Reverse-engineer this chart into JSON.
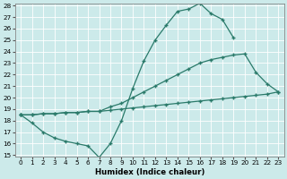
{
  "line1_x": [
    0,
    1,
    2,
    3,
    4,
    5,
    6,
    7,
    8,
    9,
    10,
    11,
    12,
    13,
    14,
    15,
    16,
    17,
    18,
    19
  ],
  "line1_y": [
    18.5,
    17.8,
    17.0,
    16.5,
    16.2,
    16.0,
    15.8,
    14.8,
    16.0,
    18.0,
    20.8,
    23.2,
    25.0,
    26.3,
    27.5,
    27.7,
    28.2,
    27.3,
    26.8,
    25.2
  ],
  "line2_x": [
    0,
    1,
    2,
    3,
    4,
    5,
    6,
    7,
    8,
    9,
    10,
    11,
    12,
    13,
    14,
    15,
    16,
    17,
    18,
    19,
    20,
    21,
    22,
    23
  ],
  "line2_y": [
    18.5,
    18.5,
    18.6,
    18.6,
    18.7,
    18.7,
    18.8,
    18.8,
    18.9,
    19.0,
    19.1,
    19.2,
    19.3,
    19.4,
    19.5,
    19.6,
    19.7,
    19.8,
    19.9,
    20.0,
    20.1,
    20.2,
    20.3,
    20.5
  ],
  "line3_x": [
    0,
    1,
    2,
    3,
    4,
    5,
    6,
    7,
    8,
    9,
    10,
    11,
    12,
    13,
    14,
    15,
    16,
    17,
    18,
    19,
    20,
    21,
    22,
    23
  ],
  "line3_y": [
    18.5,
    18.5,
    18.6,
    18.6,
    18.7,
    18.7,
    18.8,
    18.8,
    19.2,
    19.5,
    20.0,
    20.5,
    21.0,
    21.5,
    22.0,
    22.5,
    23.0,
    23.3,
    23.5,
    23.7,
    23.8,
    22.2,
    21.2,
    20.5
  ],
  "color": "#2a7a6a",
  "bg_color": "#cceaea",
  "xlabel": "Humidex (Indice chaleur)",
  "ylim": [
    15,
    28
  ],
  "xlim": [
    -0.5,
    23.5
  ],
  "yticks": [
    15,
    16,
    17,
    18,
    19,
    20,
    21,
    22,
    23,
    24,
    25,
    26,
    27,
    28
  ],
  "xticks": [
    0,
    1,
    2,
    3,
    4,
    5,
    6,
    7,
    8,
    9,
    10,
    11,
    12,
    13,
    14,
    15,
    16,
    17,
    18,
    19,
    20,
    21,
    22,
    23
  ],
  "marker_size": 3.5,
  "line_width": 0.9,
  "tick_labelsize": 5.2,
  "xlabel_fontsize": 6.2
}
